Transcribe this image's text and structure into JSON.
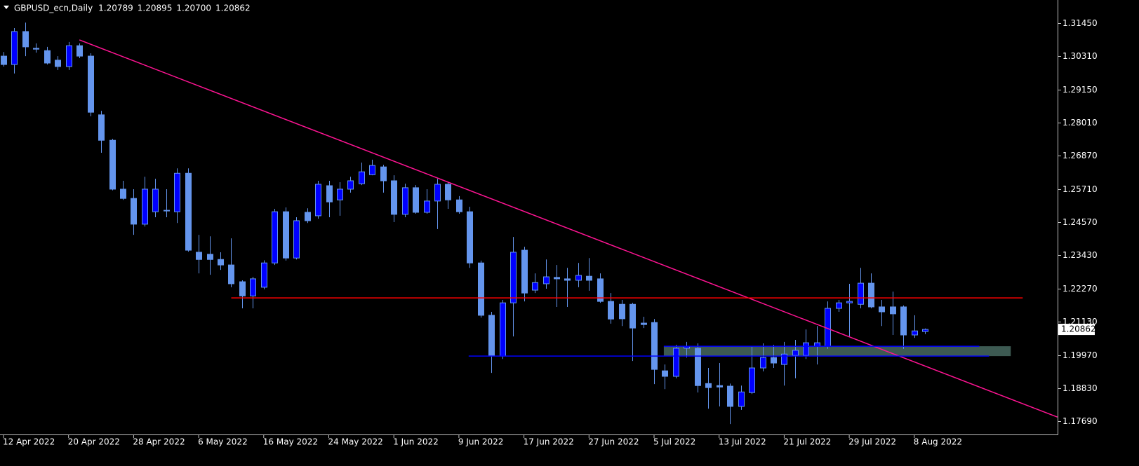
{
  "chart_data": {
    "type": "candlestick",
    "title": "GBPUSD_ecn,Daily",
    "header_prices": [
      "1.20789",
      "1.20895",
      "1.20700",
      "1.20862"
    ],
    "categories": [
      "12 Apr 2022",
      null,
      null,
      null,
      null,
      null,
      "20 Apr 2022",
      null,
      null,
      null,
      null,
      null,
      "28 Apr 2022",
      null,
      null,
      null,
      null,
      null,
      "6 May 2022",
      null,
      null,
      null,
      null,
      null,
      "16 May 2022",
      null,
      null,
      null,
      null,
      null,
      "24 May 2022",
      null,
      null,
      null,
      null,
      null,
      "1 Jun 2022",
      null,
      null,
      null,
      null,
      null,
      "9 Jun 2022",
      null,
      null,
      null,
      null,
      null,
      "17 Jun 2022",
      null,
      null,
      null,
      null,
      null,
      "27 Jun 2022",
      null,
      null,
      null,
      null,
      null,
      "5 Jul 2022",
      null,
      null,
      null,
      null,
      null,
      "13 Jul 2022",
      null,
      null,
      null,
      null,
      null,
      "21 Jul 2022",
      null,
      null,
      null,
      null,
      null,
      "29 Jul 2022",
      null,
      null,
      null,
      null,
      null,
      "8 Aug 2022",
      null
    ],
    "open": [
      1.3031,
      1.3002,
      1.3116,
      1.3058,
      1.305,
      1.3017,
      1.2995,
      1.3067,
      1.3031,
      1.2828,
      1.274,
      1.2571,
      1.2539,
      1.245,
      1.2493,
      1.2498,
      1.2493,
      1.2626,
      1.2353,
      1.2346,
      1.2328,
      1.2309,
      1.2251,
      1.2202,
      1.2232,
      1.2316,
      1.2493,
      1.2333,
      1.2491,
      1.2479,
      1.2583,
      1.2534,
      1.2571,
      1.259,
      1.2621,
      1.2648,
      1.26,
      1.2484,
      1.2576,
      1.2491,
      1.253,
      1.2588,
      1.2534,
      1.2493,
      1.2316,
      1.2135,
      1.1994,
      1.2178,
      1.236,
      1.2222,
      1.2244,
      1.2266,
      1.2261,
      1.2256,
      1.227,
      1.2261,
      1.2183,
      1.2173,
      1.2173,
      1.2108,
      1.211,
      1.1943,
      1.1924,
      1.2021,
      1.2021,
      1.1899,
      1.1892,
      1.189,
      1.182,
      1.1868,
      1.1953,
      1.1989,
      1.1965,
      1.1996,
      1.1996,
      1.2028,
      1.2028,
      1.2159,
      1.2178,
      1.2173,
      1.2246,
      1.2164,
      1.2164,
      1.2164,
      1.2067,
      1.20789
    ],
    "high": [
      1.3045,
      1.3128,
      1.3147,
      1.3075,
      1.3063,
      1.3031,
      1.308,
      1.3075,
      1.3041,
      1.2842,
      1.2745,
      1.26,
      1.2571,
      1.2614,
      1.2607,
      1.2571,
      1.2643,
      1.2643,
      1.2413,
      1.2408,
      1.2353,
      1.2401,
      1.2256,
      1.2268,
      1.2325,
      1.2503,
      1.2508,
      1.2474,
      1.2505,
      1.26,
      1.26,
      1.2595,
      1.2614,
      1.2663,
      1.2673,
      1.2655,
      1.2619,
      1.259,
      1.2585,
      1.2571,
      1.2607,
      1.2595,
      1.2547,
      1.251,
      1.2324,
      1.2147,
      1.2188,
      1.2406,
      1.2372,
      1.228,
      1.2328,
      1.2309,
      1.2299,
      1.2316,
      1.2333,
      1.228,
      1.2212,
      1.2188,
      1.2178,
      1.213,
      1.2122,
      1.1965,
      1.2033,
      1.2043,
      1.2038,
      1.1953,
      1.197,
      1.1899,
      1.1892,
      1.2026,
      1.2038,
      1.2033,
      1.2043,
      1.205,
      1.2086,
      1.2098,
      1.2183,
      1.2188,
      1.2244,
      1.2299,
      1.228,
      1.2188,
      1.2217,
      1.2169,
      1.2135,
      1.20895
    ],
    "low": [
      1.2995,
      1.2971,
      1.3031,
      1.3043,
      1.3002,
      1.2983,
      1.2983,
      1.3024,
      1.2823,
      1.2697,
      1.2567,
      1.2534,
      1.2413,
      1.2442,
      1.2474,
      1.2474,
      1.2454,
      1.2355,
      1.228,
      1.2275,
      1.2292,
      1.2232,
      1.2159,
      1.2159,
      1.2225,
      1.2309,
      1.2324,
      1.2328,
      1.2454,
      1.2469,
      1.2474,
      1.2479,
      1.2559,
      1.2585,
      1.2619,
      1.2559,
      1.2457,
      1.2474,
      1.2486,
      1.2486,
      1.2433,
      1.2503,
      1.2486,
      1.2299,
      1.2127,
      1.1936,
      1.1984,
      1.2062,
      1.2183,
      1.2212,
      1.2227,
      1.2164,
      1.2164,
      1.2232,
      1.222,
      1.2178,
      1.2106,
      1.2098,
      1.1977,
      1.2091,
      1.1897,
      1.188,
      1.1917,
      1.1989,
      1.1868,
      1.1812,
      1.182,
      1.1759,
      1.1808,
      1.1863,
      1.1941,
      1.1953,
      1.1892,
      1.1917,
      1.1984,
      1.1965,
      1.2019,
      1.2147,
      1.2062,
      1.2159,
      1.2159,
      1.2098,
      1.2067,
      1.2019,
      1.2057,
      1.207
    ],
    "close": [
      1.3002,
      1.3116,
      1.3063,
      1.3055,
      1.3007,
      1.2995,
      1.3067,
      1.3031,
      1.2837,
      1.274,
      1.2571,
      1.2539,
      1.245,
      1.2571,
      1.2571,
      1.2496,
      1.2626,
      1.236,
      1.2328,
      1.2328,
      1.2309,
      1.2244,
      1.2202,
      1.2261,
      1.2316,
      1.2493,
      1.2333,
      1.2462,
      1.2462,
      1.2588,
      1.2527,
      1.2571,
      1.26,
      1.2631,
      1.2653,
      1.26,
      1.2484,
      1.2576,
      1.2491,
      1.253,
      1.2588,
      1.2534,
      1.2493,
      1.2316,
      1.2135,
      1.1994,
      1.2178,
      1.2353,
      1.2212,
      1.2248,
      1.2268,
      1.2261,
      1.2256,
      1.2273,
      1.2256,
      1.2183,
      1.2122,
      1.2123,
      1.2091,
      1.2103,
      1.1948,
      1.1924,
      1.2021,
      1.2028,
      1.1892,
      1.1885,
      1.1887,
      1.182,
      1.187,
      1.1953,
      1.1989,
      1.197,
      1.2001,
      1.2014,
      1.204,
      1.204,
      1.2159,
      1.2178,
      1.2183,
      1.2246,
      1.2164,
      1.2147,
      1.214,
      1.2067,
      1.2081,
      1.20862
    ],
    "up_color": "#0000ff",
    "down_color": "#6495ed",
    "ylim": [
      1.1723,
      1.3225
    ],
    "yticks": [
      {
        "value": 1.3145,
        "label": "1.31450"
      },
      {
        "value": 1.3031,
        "label": "1.30310"
      },
      {
        "value": 1.2915,
        "label": "1.29150"
      },
      {
        "value": 1.2801,
        "label": "1.28010"
      },
      {
        "value": 1.2687,
        "label": "1.26870"
      },
      {
        "value": 1.2571,
        "label": "1.25710"
      },
      {
        "value": 1.2457,
        "label": "1.24570"
      },
      {
        "value": 1.2343,
        "label": "1.23430"
      },
      {
        "value": 1.2227,
        "label": "1.22270"
      },
      {
        "value": 1.2113,
        "label": "1.21130"
      },
      {
        "value": 1.1997,
        "label": "1.19970"
      },
      {
        "value": 1.1883,
        "label": "1.18830"
      },
      {
        "value": 1.1769,
        "label": "1.17690"
      }
    ],
    "last_price": {
      "value": 1.20862,
      "label": "1.20862"
    },
    "drawings": [
      {
        "kind": "line",
        "color": "#ff1493",
        "x": [
          7,
          97.2
        ],
        "y": [
          1.3087,
          1.1783
        ]
      },
      {
        "kind": "line",
        "color": "#ff0000",
        "x": [
          21,
          94
        ],
        "y": [
          1.2195,
          1.2195
        ]
      },
      {
        "kind": "rect",
        "color": "#3d5a52",
        "x": [
          60.9,
          92.9
        ],
        "y": [
          1.2028,
          1.1994
        ]
      },
      {
        "kind": "line",
        "color": "#0000ff",
        "x": [
          42.9,
          90.9
        ],
        "y": [
          1.1994,
          1.1994
        ]
      },
      {
        "kind": "line",
        "color": "#0000ff",
        "x": [
          60.9,
          90.0
        ],
        "y": [
          1.2028,
          1.2028
        ]
      }
    ]
  }
}
